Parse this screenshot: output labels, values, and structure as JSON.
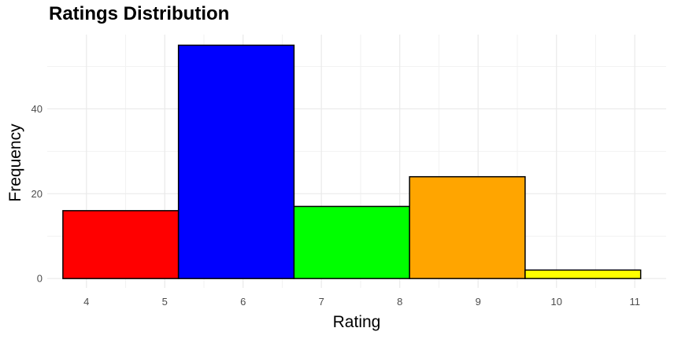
{
  "chart_data": {
    "type": "bar",
    "title": "Ratings Distribution",
    "xlabel": "Rating",
    "ylabel": "Frequency",
    "bins": [
      {
        "start": 3.7,
        "end": 5.175,
        "value": 16,
        "color": "#FF0000"
      },
      {
        "start": 5.175,
        "end": 6.65,
        "value": 55,
        "color": "#0000FF"
      },
      {
        "start": 6.65,
        "end": 8.125,
        "value": 17,
        "color": "#00FF00"
      },
      {
        "start": 8.125,
        "end": 9.6,
        "value": 24,
        "color": "#FFA500"
      },
      {
        "start": 9.6,
        "end": 11.075,
        "value": 2,
        "color": "#FFFF00"
      }
    ],
    "xlim": [
      3.5,
      11.4
    ],
    "ylim": [
      -2.2,
      57.5
    ],
    "x_ticks": [
      "4",
      "5",
      "6",
      "7",
      "8",
      "9",
      "10",
      "11"
    ],
    "y_ticks": [
      "0",
      "20",
      "40"
    ],
    "grid": true,
    "legend": "none"
  }
}
